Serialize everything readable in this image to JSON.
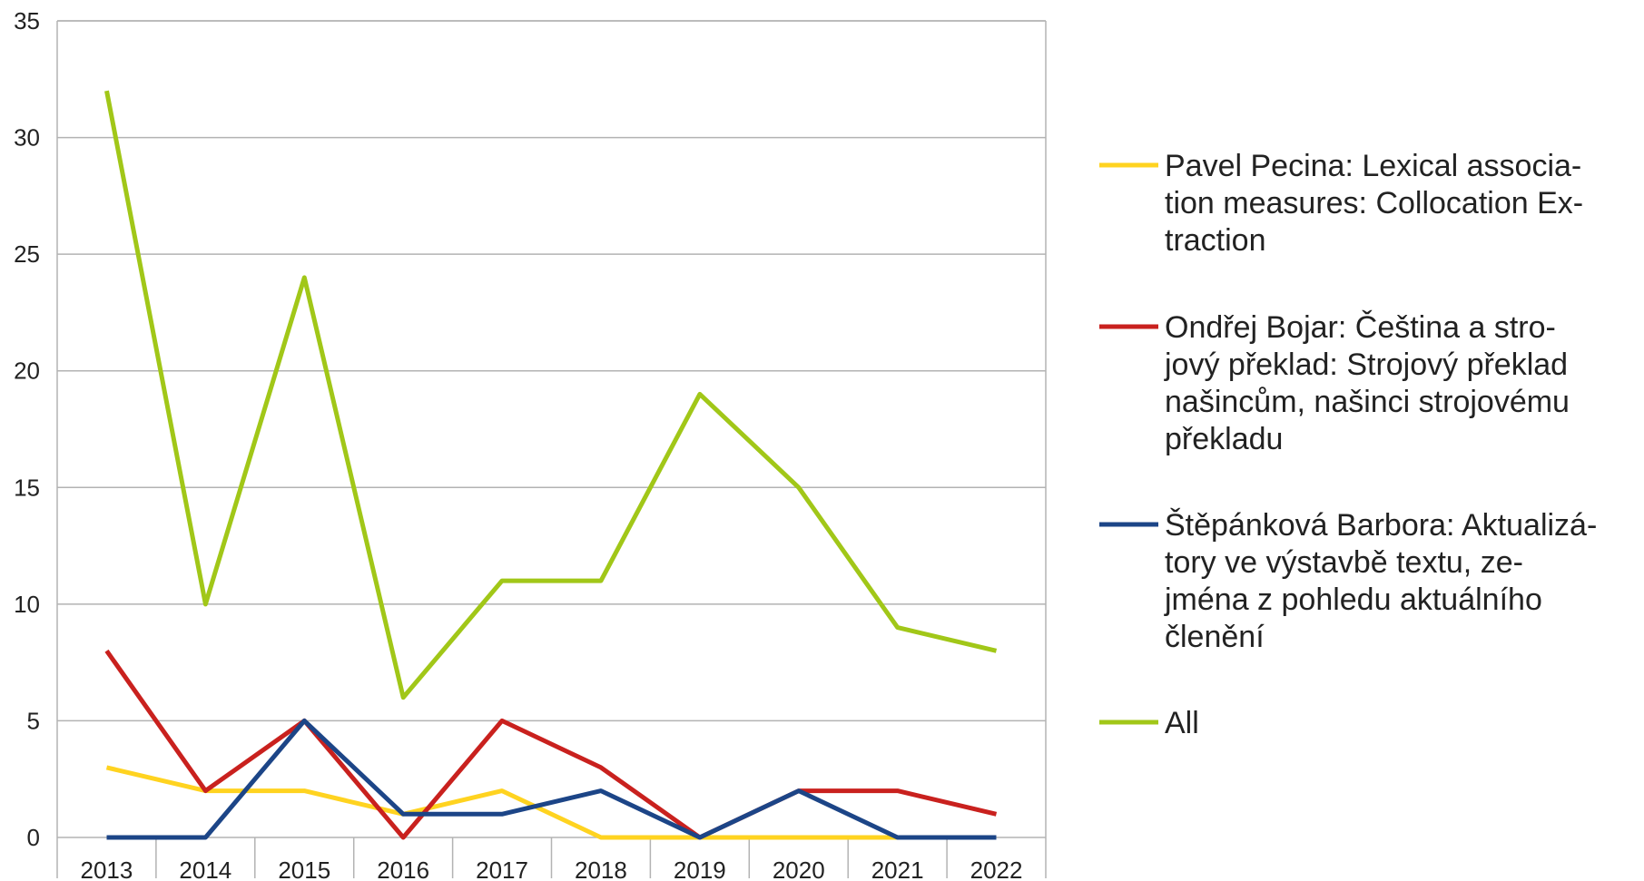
{
  "chart_data": {
    "type": "line",
    "x": [
      "2013",
      "2014",
      "2015",
      "2016",
      "2017",
      "2018",
      "2019",
      "2020",
      "2021",
      "2022"
    ],
    "ylim": [
      0,
      35
    ],
    "yticks": [
      "0",
      "5",
      "10",
      "15",
      "20",
      "25",
      "30",
      "35"
    ],
    "grid": true,
    "legend_position": "right",
    "series": [
      {
        "name": "Pavel Pecina: Lexical association measures: Collocation Extraction",
        "legend_lines": [
          "Pavel Pecina: Lexical associa-",
          "tion measures: Collocation Ex-",
          "traction"
        ],
        "color": "#ffd320",
        "values": [
          3,
          2,
          2,
          1,
          2,
          0,
          0,
          0,
          0,
          0
        ]
      },
      {
        "name": "Ondřej Bojar: Čeština a strojový překlad: Strojový překlad našincům, našinci strojovému překladu",
        "legend_lines": [
          "Ondřej Bojar: Čeština a stro-",
          "jový překlad: Strojový překlad",
          "našincům, našinci strojovému",
          "překladu"
        ],
        "color": "#c9211e",
        "values": [
          8,
          2,
          5,
          0,
          5,
          3,
          0,
          2,
          2,
          1
        ]
      },
      {
        "name": "Štěpánková Barbora: Aktualizátory ve výstavbě textu, zejména z pohledu aktuálního členění",
        "legend_lines": [
          "Štěpánková Barbora: Aktualizá-",
          "tory ve výstavbě textu, ze-",
          "jména z pohledu aktuálního",
          "členění"
        ],
        "color": "#1c4587",
        "values": [
          0,
          0,
          5,
          1,
          1,
          2,
          0,
          2,
          0,
          0
        ]
      },
      {
        "name": "All",
        "legend_lines": [
          "All"
        ],
        "color": "#a1c718",
        "values": [
          32,
          10,
          24,
          6,
          11,
          11,
          19,
          15,
          9,
          8
        ]
      }
    ]
  }
}
